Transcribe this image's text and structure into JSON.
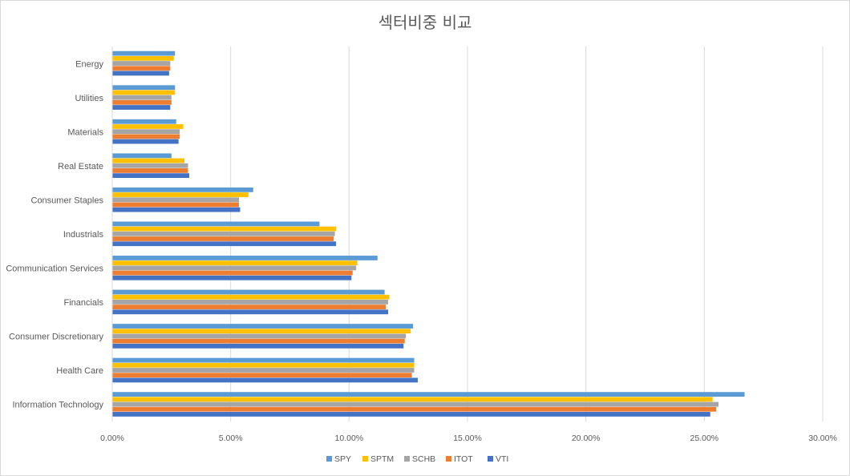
{
  "chart_data": {
    "type": "bar",
    "orientation": "horizontal",
    "title": "섹터비중 비교",
    "categories": [
      "Information Technology",
      "Health Care",
      "Consumer Discretionary",
      "Financials",
      "Communication Services",
      "Industrials",
      "Consumer Staples",
      "Real Estate",
      "Materials",
      "Utilities",
      "Energy"
    ],
    "series": [
      {
        "name": "SPY",
        "color": "#5b9bd5",
        "values": [
          26.7,
          12.75,
          12.7,
          11.5,
          11.2,
          8.75,
          5.95,
          2.5,
          2.7,
          2.65,
          2.65
        ]
      },
      {
        "name": "SPTM",
        "color": "#ffc000",
        "values": [
          25.35,
          12.75,
          12.6,
          11.7,
          10.35,
          9.45,
          5.75,
          3.05,
          3.0,
          2.65,
          2.6
        ]
      },
      {
        "name": "SCHB",
        "color": "#a5a5a5",
        "values": [
          25.6,
          12.75,
          12.4,
          11.65,
          10.3,
          9.4,
          5.35,
          3.2,
          2.85,
          2.5,
          2.45
        ]
      },
      {
        "name": "ITOT",
        "color": "#ed7d31",
        "values": [
          25.5,
          12.65,
          12.35,
          11.55,
          10.15,
          9.35,
          5.35,
          3.2,
          2.85,
          2.5,
          2.45
        ]
      },
      {
        "name": "VTI",
        "color": "#4472c4",
        "values": [
          25.25,
          12.9,
          12.3,
          11.65,
          10.1,
          9.45,
          5.4,
          3.25,
          2.8,
          2.45,
          2.4
        ]
      }
    ],
    "xlim": [
      0,
      30
    ],
    "xticks": [
      "0.00%",
      "5.00%",
      "10.00%",
      "15.00%",
      "20.00%",
      "25.00%",
      "30.00%"
    ],
    "grid": "vertical",
    "legend_position": "bottom"
  }
}
